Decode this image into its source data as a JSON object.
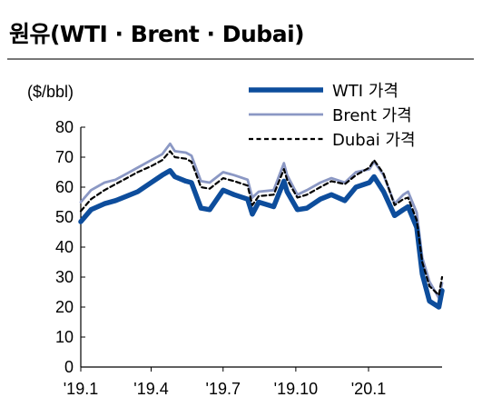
{
  "header": {
    "title": "원유(WTI · Brent · Dubai)"
  },
  "chart_data": {
    "type": "line",
    "title": "원유(WTI · Brent · Dubai)",
    "ylabel": "($/bbl)",
    "xlabel": "",
    "ylim": [
      0,
      80
    ],
    "yticks": [
      0,
      10,
      20,
      30,
      40,
      50,
      60,
      70,
      80
    ],
    "xlim": [
      "2019-01-02",
      "2020-04-03"
    ],
    "xticks": [
      {
        "date": "2019-01-01",
        "label": "'19.1"
      },
      {
        "date": "2019-04-01",
        "label": "'19.4"
      },
      {
        "date": "2019-07-01",
        "label": "'19.7"
      },
      {
        "date": "2019-10-01",
        "label": "'19.10"
      },
      {
        "date": "2020-01-01",
        "label": "'20.1"
      }
    ],
    "grid": false,
    "legend": "top-right",
    "colors": {
      "WTI 가격": "#0d4d9c",
      "Brent 가격": "#8b98c4",
      "Dubai 가격": "#000000"
    },
    "x": [
      "2019-01-02",
      "2019-01-15",
      "2019-02-01",
      "2019-02-15",
      "2019-03-01",
      "2019-03-15",
      "2019-04-01",
      "2019-04-15",
      "2019-04-25",
      "2019-05-01",
      "2019-05-15",
      "2019-05-22",
      "2019-06-03",
      "2019-06-14",
      "2019-07-01",
      "2019-07-15",
      "2019-08-01",
      "2019-08-07",
      "2019-08-15",
      "2019-09-03",
      "2019-09-16",
      "2019-09-20",
      "2019-10-03",
      "2019-10-15",
      "2019-11-01",
      "2019-11-15",
      "2019-12-02",
      "2019-12-16",
      "2020-01-02",
      "2020-01-08",
      "2020-01-20",
      "2020-02-03",
      "2020-02-14",
      "2020-02-20",
      "2020-03-02",
      "2020-03-09",
      "2020-03-18",
      "2020-03-30",
      "2020-04-03"
    ],
    "series": [
      {
        "name": "WTI 가격",
        "values": [
          48.5,
          52.5,
          54.5,
          55.5,
          57.0,
          58.5,
          61.5,
          64.0,
          65.5,
          63.5,
          62.0,
          61.5,
          53.0,
          52.5,
          59.0,
          57.5,
          56.0,
          51.0,
          55.0,
          53.5,
          62.0,
          58.5,
          52.5,
          53.0,
          56.0,
          57.5,
          55.5,
          60.0,
          61.5,
          63.5,
          58.5,
          50.5,
          52.5,
          53.5,
          46.5,
          31.0,
          22.0,
          20.0,
          25.5
        ]
      },
      {
        "name": "Brent 가격",
        "values": [
          55.0,
          59.0,
          61.5,
          62.5,
          64.5,
          66.5,
          69.0,
          71.0,
          74.5,
          72.0,
          71.5,
          70.5,
          62.0,
          61.5,
          65.0,
          64.0,
          62.5,
          56.5,
          58.5,
          59.0,
          68.0,
          64.0,
          57.5,
          59.0,
          61.5,
          63.0,
          61.5,
          65.0,
          66.0,
          68.5,
          64.0,
          54.5,
          57.5,
          58.5,
          51.5,
          36.5,
          28.5,
          23.0,
          28.0
        ]
      },
      {
        "name": "Dubai 가격",
        "values": [
          52.0,
          56.0,
          59.0,
          61.0,
          63.0,
          65.0,
          67.0,
          69.0,
          72.0,
          70.0,
          69.5,
          68.5,
          60.0,
          59.5,
          63.0,
          62.0,
          60.5,
          54.0,
          57.0,
          57.5,
          66.0,
          62.5,
          56.5,
          57.5,
          60.0,
          62.0,
          61.0,
          64.0,
          66.5,
          69.0,
          64.5,
          54.0,
          56.0,
          56.5,
          49.0,
          35.0,
          27.0,
          24.0,
          30.0
        ]
      }
    ]
  }
}
